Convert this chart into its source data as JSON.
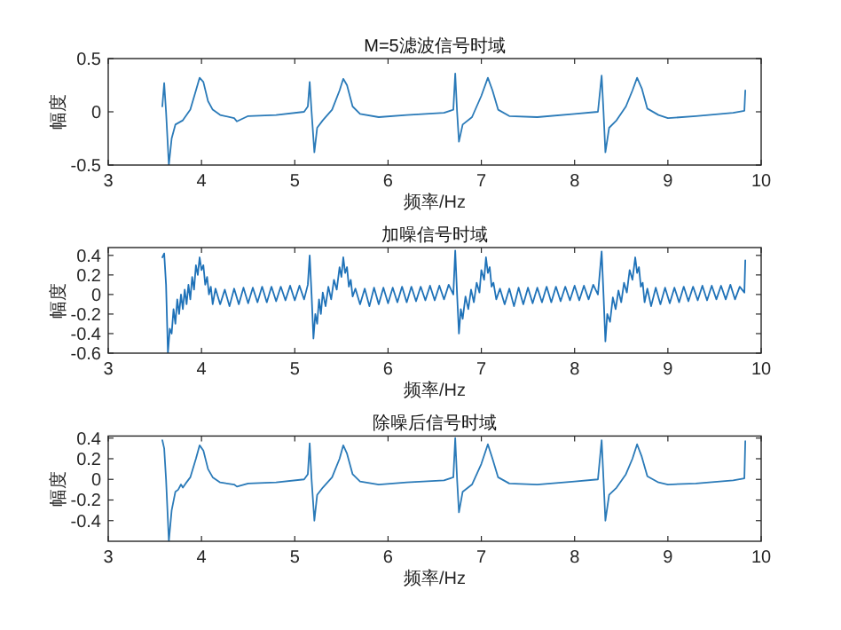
{
  "chart_data": [
    {
      "type": "line",
      "title": "M=5滤波信号时域",
      "xlabel": "频率/Hz",
      "ylabel": "幅度",
      "xlim": [
        3,
        10
      ],
      "ylim": [
        -0.5,
        0.5
      ],
      "xticks": [
        3,
        4,
        5,
        6,
        7,
        8,
        9,
        10
      ],
      "yticks": [
        -0.5,
        0,
        0.5
      ],
      "x": [
        3.58,
        3.6,
        3.62,
        3.65,
        3.68,
        3.72,
        3.8,
        3.88,
        3.94,
        3.98,
        4.02,
        4.07,
        4.12,
        4.2,
        4.35,
        4.38,
        4.5,
        4.8,
        5.1,
        5.14,
        5.16,
        5.18,
        5.21,
        5.24,
        5.3,
        5.4,
        5.48,
        5.52,
        5.56,
        5.62,
        5.7,
        5.9,
        6.2,
        6.6,
        6.7,
        6.72,
        6.74,
        6.76,
        6.8,
        6.9,
        7.0,
        7.07,
        7.12,
        7.18,
        7.3,
        7.6,
        8.0,
        8.25,
        8.29,
        8.31,
        8.33,
        8.37,
        8.45,
        8.55,
        8.62,
        8.67,
        8.72,
        8.78,
        8.9,
        9.0,
        9.3,
        9.7,
        9.82,
        9.83
      ],
      "series": [
        {
          "color": "#2a7ab8",
          "values": [
            0.05,
            0.27,
            0.0,
            -0.5,
            -0.25,
            -0.12,
            -0.08,
            0.02,
            0.2,
            0.32,
            0.28,
            0.1,
            0.02,
            -0.03,
            -0.06,
            -0.09,
            -0.04,
            -0.03,
            0.0,
            0.05,
            0.28,
            0.0,
            -0.38,
            -0.15,
            -0.08,
            0.02,
            0.2,
            0.31,
            0.25,
            0.05,
            -0.02,
            -0.05,
            -0.03,
            -0.01,
            0.02,
            0.36,
            0.0,
            -0.28,
            -0.12,
            -0.05,
            0.15,
            0.32,
            0.2,
            0.02,
            -0.04,
            -0.05,
            -0.02,
            0.0,
            0.34,
            0.0,
            -0.38,
            -0.15,
            -0.08,
            0.05,
            0.2,
            0.32,
            0.22,
            0.03,
            -0.03,
            -0.06,
            -0.04,
            -0.01,
            0.01,
            0.2
          ]
        }
      ]
    },
    {
      "type": "line",
      "title": "加噪信号时域",
      "xlabel": "频率/Hz",
      "ylabel": "幅度",
      "xlim": [
        3,
        10
      ],
      "ylim": [
        -0.6,
        0.48
      ],
      "xticks": [
        3,
        4,
        5,
        6,
        7,
        8,
        9,
        10
      ],
      "yticks": [
        -0.6,
        -0.4,
        -0.2,
        0,
        0.2,
        0.4
      ],
      "x": [
        3.58,
        3.6,
        3.62,
        3.64,
        3.66,
        3.68,
        3.7,
        3.72,
        3.74,
        3.76,
        3.78,
        3.8,
        3.82,
        3.84,
        3.86,
        3.88,
        3.9,
        3.92,
        3.94,
        3.96,
        3.98,
        4.0,
        4.02,
        4.04,
        4.06,
        4.08,
        4.1,
        4.12,
        4.15,
        4.2,
        4.25,
        4.3,
        4.35,
        4.4,
        4.45,
        4.5,
        4.55,
        4.6,
        4.65,
        4.7,
        4.75,
        4.8,
        4.85,
        4.9,
        4.95,
        5.0,
        5.05,
        5.1,
        5.14,
        5.16,
        5.18,
        5.2,
        5.22,
        5.24,
        5.26,
        5.28,
        5.3,
        5.33,
        5.36,
        5.39,
        5.42,
        5.45,
        5.48,
        5.5,
        5.52,
        5.54,
        5.56,
        5.58,
        5.6,
        5.62,
        5.65,
        5.7,
        5.75,
        5.8,
        5.85,
        5.9,
        5.95,
        6.0,
        6.05,
        6.1,
        6.15,
        6.2,
        6.25,
        6.3,
        6.35,
        6.4,
        6.45,
        6.5,
        6.55,
        6.6,
        6.65,
        6.7,
        6.72,
        6.74,
        6.76,
        6.78,
        6.8,
        6.83,
        6.86,
        6.89,
        6.92,
        6.95,
        6.98,
        7.0,
        7.03,
        7.05,
        7.07,
        7.09,
        7.11,
        7.13,
        7.16,
        7.2,
        7.25,
        7.3,
        7.35,
        7.4,
        7.45,
        7.5,
        7.55,
        7.6,
        7.65,
        7.7,
        7.75,
        7.8,
        7.85,
        7.9,
        7.95,
        8.0,
        8.05,
        8.1,
        8.15,
        8.2,
        8.25,
        8.29,
        8.31,
        8.33,
        8.35,
        8.38,
        8.41,
        8.44,
        8.47,
        8.5,
        8.53,
        8.56,
        8.59,
        8.62,
        8.65,
        8.67,
        8.69,
        8.71,
        8.73,
        8.75,
        8.78,
        8.82,
        8.87,
        8.92,
        8.97,
        9.02,
        9.07,
        9.12,
        9.17,
        9.22,
        9.27,
        9.32,
        9.37,
        9.42,
        9.47,
        9.52,
        9.57,
        9.62,
        9.67,
        9.72,
        9.77,
        9.82,
        9.83
      ],
      "series": [
        {
          "color": "#1f72b8",
          "values": [
            0.38,
            0.42,
            0.1,
            -0.6,
            -0.35,
            -0.4,
            -0.15,
            -0.3,
            -0.05,
            -0.2,
            0.0,
            -0.15,
            0.05,
            -0.1,
            0.1,
            -0.05,
            0.18,
            0.05,
            0.3,
            0.2,
            0.38,
            0.25,
            0.3,
            0.1,
            0.18,
            0.0,
            0.08,
            -0.1,
            0.06,
            -0.1,
            0.05,
            -0.12,
            0.06,
            -0.1,
            0.07,
            -0.09,
            0.07,
            -0.08,
            0.08,
            -0.08,
            0.08,
            -0.07,
            0.08,
            -0.06,
            0.09,
            -0.06,
            0.09,
            -0.05,
            0.1,
            0.4,
            0.0,
            -0.45,
            -0.2,
            -0.3,
            -0.05,
            -0.2,
            0.02,
            -0.12,
            0.08,
            -0.05,
            0.15,
            0.05,
            0.28,
            0.18,
            0.38,
            0.22,
            0.28,
            0.08,
            0.15,
            -0.02,
            0.06,
            -0.1,
            0.06,
            -0.12,
            0.07,
            -0.1,
            0.07,
            -0.09,
            0.07,
            -0.08,
            0.08,
            -0.08,
            0.08,
            -0.07,
            0.08,
            -0.06,
            0.09,
            -0.06,
            0.09,
            -0.05,
            0.1,
            0.0,
            0.45,
            0.0,
            -0.4,
            -0.15,
            -0.25,
            -0.02,
            -0.15,
            0.05,
            -0.08,
            0.12,
            0.02,
            0.25,
            0.15,
            0.38,
            0.22,
            0.28,
            0.08,
            0.12,
            -0.05,
            0.06,
            -0.1,
            0.06,
            -0.12,
            0.07,
            -0.1,
            0.07,
            -0.09,
            0.07,
            -0.08,
            0.08,
            -0.08,
            0.08,
            -0.07,
            0.08,
            -0.06,
            0.09,
            -0.06,
            0.09,
            -0.05,
            0.1,
            0.0,
            0.44,
            0.0,
            -0.48,
            -0.2,
            -0.28,
            -0.03,
            -0.15,
            0.04,
            -0.08,
            0.12,
            0.02,
            0.25,
            0.15,
            0.38,
            0.22,
            0.28,
            0.08,
            0.12,
            -0.08,
            0.06,
            -0.12,
            0.07,
            -0.1,
            0.07,
            -0.09,
            0.07,
            -0.08,
            0.08,
            -0.07,
            0.08,
            -0.06,
            0.09,
            -0.06,
            0.09,
            -0.05,
            0.09,
            -0.05,
            0.1,
            -0.05,
            0.08,
            0.02,
            0.35
          ]
        }
      ]
    },
    {
      "type": "line",
      "title": "除噪后信号时域",
      "xlabel": "频率/Hz",
      "ylabel": "幅度",
      "xlim": [
        3,
        10
      ],
      "ylim": [
        -0.6,
        0.42
      ],
      "xticks": [
        3,
        4,
        5,
        6,
        7,
        8,
        9,
        10
      ],
      "yticks": [
        -0.4,
        -0.2,
        0,
        0.2,
        0.4
      ],
      "x": [
        3.58,
        3.6,
        3.62,
        3.65,
        3.68,
        3.72,
        3.75,
        3.78,
        3.8,
        3.83,
        3.88,
        3.94,
        3.98,
        4.02,
        4.07,
        4.12,
        4.2,
        4.35,
        4.38,
        4.5,
        4.8,
        5.1,
        5.14,
        5.16,
        5.18,
        5.21,
        5.24,
        5.3,
        5.4,
        5.48,
        5.52,
        5.56,
        5.62,
        5.7,
        5.9,
        6.2,
        6.6,
        6.7,
        6.72,
        6.74,
        6.76,
        6.8,
        6.9,
        7.0,
        7.07,
        7.12,
        7.18,
        7.3,
        7.6,
        8.0,
        8.25,
        8.29,
        8.31,
        8.33,
        8.37,
        8.45,
        8.55,
        8.62,
        8.67,
        8.72,
        8.78,
        8.9,
        9.0,
        9.3,
        9.7,
        9.82,
        9.83
      ],
      "series": [
        {
          "color": "#2a7ab8",
          "values": [
            0.38,
            0.3,
            0.0,
            -0.6,
            -0.3,
            -0.12,
            -0.1,
            -0.05,
            -0.08,
            -0.04,
            0.02,
            0.2,
            0.33,
            0.28,
            0.1,
            0.02,
            -0.03,
            -0.05,
            -0.07,
            -0.04,
            -0.03,
            0.0,
            0.05,
            0.35,
            0.0,
            -0.4,
            -0.15,
            -0.08,
            0.02,
            0.2,
            0.33,
            0.25,
            0.05,
            -0.02,
            -0.05,
            -0.03,
            -0.01,
            0.02,
            0.4,
            0.0,
            -0.32,
            -0.12,
            -0.05,
            0.15,
            0.34,
            0.2,
            0.02,
            -0.04,
            -0.05,
            -0.02,
            0.0,
            0.38,
            0.0,
            -0.4,
            -0.15,
            -0.08,
            0.05,
            0.2,
            0.34,
            0.22,
            0.03,
            -0.03,
            -0.05,
            -0.04,
            -0.01,
            0.01,
            0.37
          ]
        }
      ]
    }
  ]
}
